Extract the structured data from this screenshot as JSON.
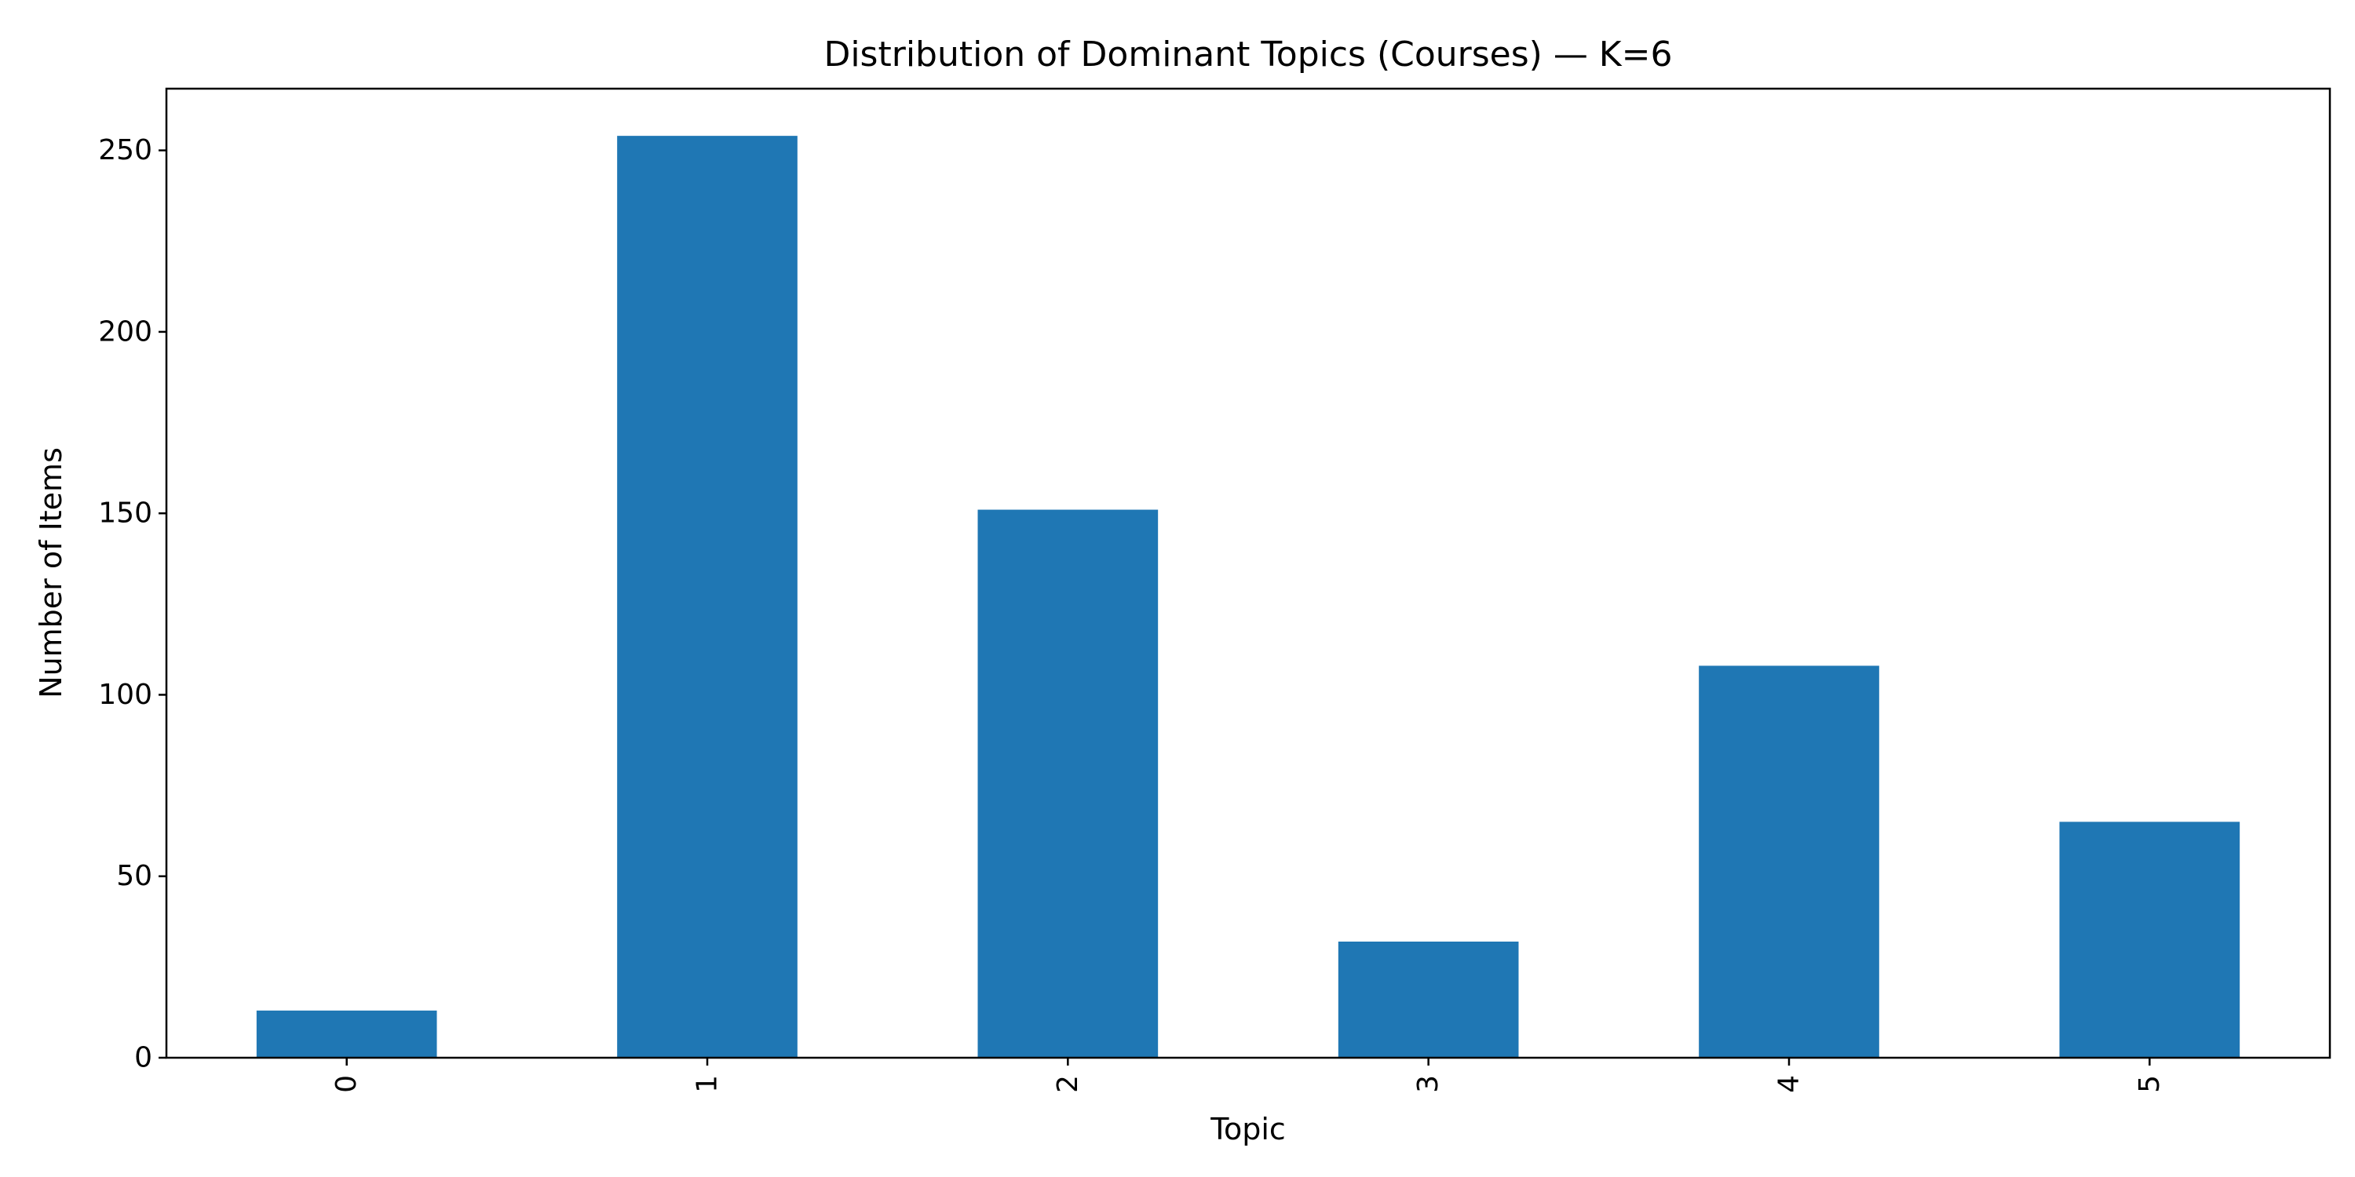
{
  "chart_data": {
    "type": "bar",
    "title": "Distribution of Dominant Topics (Courses) — K=6",
    "xlabel": "Topic",
    "ylabel": "Number of Items",
    "categories": [
      "0",
      "1",
      "2",
      "3",
      "4",
      "5"
    ],
    "values": [
      13,
      254,
      151,
      32,
      108,
      65
    ],
    "ylim": [
      0,
      267
    ],
    "yticks": [
      0,
      50,
      100,
      150,
      200,
      250
    ],
    "x_tick_rotation": "vertical",
    "grid": false,
    "legend": "none",
    "bar_color": "#1f77b4"
  }
}
